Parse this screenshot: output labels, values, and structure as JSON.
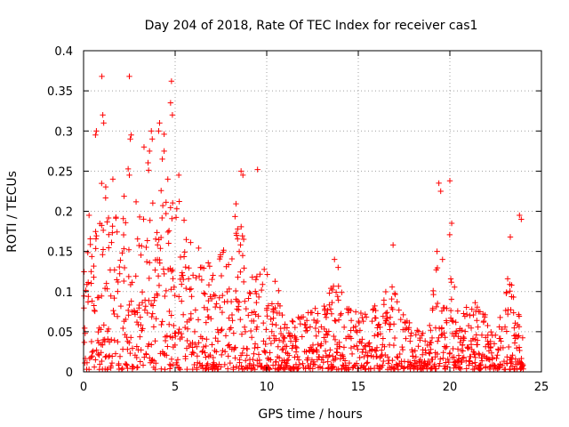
{
  "chart_data": {
    "type": "scatter",
    "title": "Day 204 of 2018, Rate Of TEC Index for receiver cas1",
    "xlabel": "GPS time / hours",
    "ylabel": "ROTI / TECUs",
    "xlim": [
      0,
      25
    ],
    "ylim": [
      0,
      0.4
    ],
    "xticks": [
      0,
      5,
      10,
      15,
      20,
      25
    ],
    "yticks": [
      0,
      0.05,
      0.1,
      0.15,
      0.2,
      0.25,
      0.3,
      0.35,
      0.4
    ],
    "xtick_labels": [
      "0",
      "5",
      "10",
      "15",
      "20",
      "25"
    ],
    "ytick_labels": [
      "0",
      "0.05",
      "0.1",
      "0.15",
      "0.2",
      "0.25",
      "0.3",
      "0.35",
      "0.4"
    ],
    "grid": true,
    "marker": "+",
    "color": "#ff0000",
    "series": [
      {
        "name": "ROTI",
        "x": [
          0.2,
          0.5,
          0.6,
          0.9,
          1.0,
          1.05,
          1.3,
          1.6,
          1.9,
          2.2,
          2.5,
          2.6,
          2.9,
          3.3,
          3.5,
          3.6,
          3.9,
          4.1,
          4.3,
          4.6,
          4.65,
          4.7,
          4.8,
          5.0,
          5.2,
          5.5,
          5.8,
          6.1,
          6.4,
          6.7,
          7.1,
          7.5,
          7.9,
          8.3,
          8.5,
          8.6,
          9.0,
          9.5,
          9.6,
          10.0,
          10.5,
          11.0,
          11.6,
          12.2,
          12.9,
          13.3,
          13.7,
          13.9,
          14.5,
          15.0,
          15.6,
          16.2,
          16.5,
          16.9,
          17.5,
          18.1,
          18.6,
          19.2,
          19.3,
          19.5,
          19.9,
          20.0,
          20.5,
          21.1,
          21.6,
          22.2,
          22.7,
          23.2,
          23.5,
          23.7,
          23.9
        ]
      }
    ]
  }
}
